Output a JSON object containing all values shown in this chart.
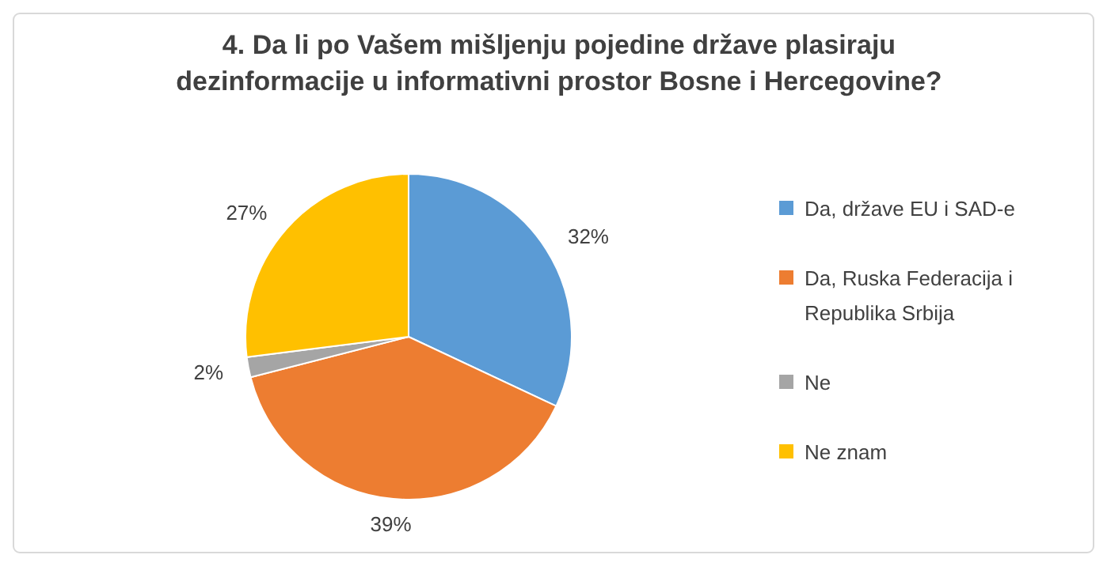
{
  "chart_data": {
    "type": "pie",
    "title": "4. Da li po Vašem mišljenju pojedine države plasiraju dezinformacije u informativni prostor Bosne i Hercegovine?",
    "categories": [
      "Da, države EU i SAD-e",
      "Da, Ruska Federacija i Republika Srbija",
      "Ne",
      "Ne znam"
    ],
    "values": [
      32,
      39,
      2,
      27
    ],
    "colors": [
      "#5b9bd5",
      "#ed7d31",
      "#a5a5a5",
      "#ffc000"
    ],
    "value_labels": [
      "32%",
      "39%",
      "2%",
      "27%"
    ],
    "legend": "right"
  }
}
